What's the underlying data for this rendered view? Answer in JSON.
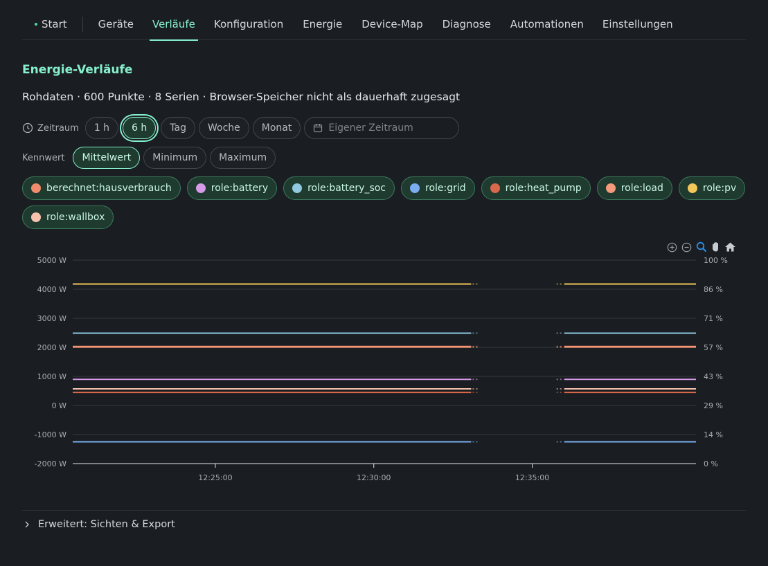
{
  "nav": {
    "start": "Start",
    "items": [
      "Geräte",
      "Verläufe",
      "Konfiguration",
      "Energie",
      "Device-Map",
      "Diagnose",
      "Automationen",
      "Einstellungen"
    ],
    "active": "Verläufe"
  },
  "page": {
    "title": "Energie-Verläufe",
    "subtitle": "Rohdaten · 600 Punkte · 8 Serien · Browser-Speicher nicht als dauerhaft zugesagt"
  },
  "range": {
    "label": "Zeitraum",
    "options": [
      "1 h",
      "6 h",
      "Tag",
      "Woche",
      "Monat"
    ],
    "selected": "6 h",
    "custom_placeholder": "Eigener Zeitraum"
  },
  "metric": {
    "label": "Kennwert",
    "options": [
      "Mittelwert",
      "Minimum",
      "Maximum"
    ],
    "selected": "Mittelwert"
  },
  "series_chips": [
    {
      "label": "berechnet:hausverbrauch",
      "color": "#f08c6c"
    },
    {
      "label": "role:battery",
      "color": "#d59ae8"
    },
    {
      "label": "role:battery_soc",
      "color": "#8fc8df"
    },
    {
      "label": "role:grid",
      "color": "#7aaef0"
    },
    {
      "label": "role:heat_pump",
      "color": "#d9694a"
    },
    {
      "label": "role:load",
      "color": "#f59a7a"
    },
    {
      "label": "role:pv",
      "color": "#f3c65a"
    },
    {
      "label": "role:wallbox",
      "color": "#f7c3ae"
    }
  ],
  "toolbar": {
    "icons": [
      "zoom-in-icon",
      "zoom-out-icon",
      "zoom-selection-icon",
      "pan-icon",
      "reset-home-icon"
    ],
    "active": "zoom-selection-icon",
    "accent": "#2b8fe8"
  },
  "chart_data": {
    "type": "line",
    "x_ticks": [
      "12:25:00",
      "12:30:00",
      "12:35:00"
    ],
    "x_tick_values": [
      "12:25:00",
      "12:30:00",
      "12:35:00"
    ],
    "xlim": [
      "12:20:30",
      "12:40:10"
    ],
    "y_left": {
      "ticks": [
        "5000 W",
        "4000 W",
        "3000 W",
        "2000 W",
        "1000 W",
        "0 W",
        "-1000 W",
        "-2000 W"
      ],
      "ylim": [
        -2000,
        5000
      ]
    },
    "y_right": {
      "ticks": [
        "100 %",
        "86 %",
        "71 %",
        "57 %",
        "43 %",
        "29 %",
        "14 %",
        "0 %"
      ],
      "ylim": [
        0,
        100
      ]
    },
    "grid": true,
    "gap": [
      "12:33:15",
      "12:35:50"
    ],
    "series": [
      {
        "name": "role:pv",
        "axis": "left",
        "color": "#f3c65a",
        "value": 4180
      },
      {
        "name": "role:battery_soc",
        "axis": "right",
        "color": "#8fc8df",
        "value": 64.1
      },
      {
        "name": "berechnet:hausverbrauch",
        "axis": "left",
        "color": "#f08c6c",
        "value": 2030
      },
      {
        "name": "role:load",
        "axis": "left",
        "color": "#f59a7a",
        "value": 2010
      },
      {
        "name": "role:battery",
        "axis": "left",
        "color": "#d59ae8",
        "value": 900
      },
      {
        "name": "role:wallbox",
        "axis": "left",
        "color": "#f7c3ae",
        "value": 570
      },
      {
        "name": "role:heat_pump",
        "axis": "left",
        "color": "#d9694a",
        "value": 450
      },
      {
        "name": "role:grid",
        "axis": "left",
        "color": "#7aaef0",
        "value": -1250
      }
    ]
  },
  "expander": {
    "label": "Erweitert: Sichten & Export"
  }
}
